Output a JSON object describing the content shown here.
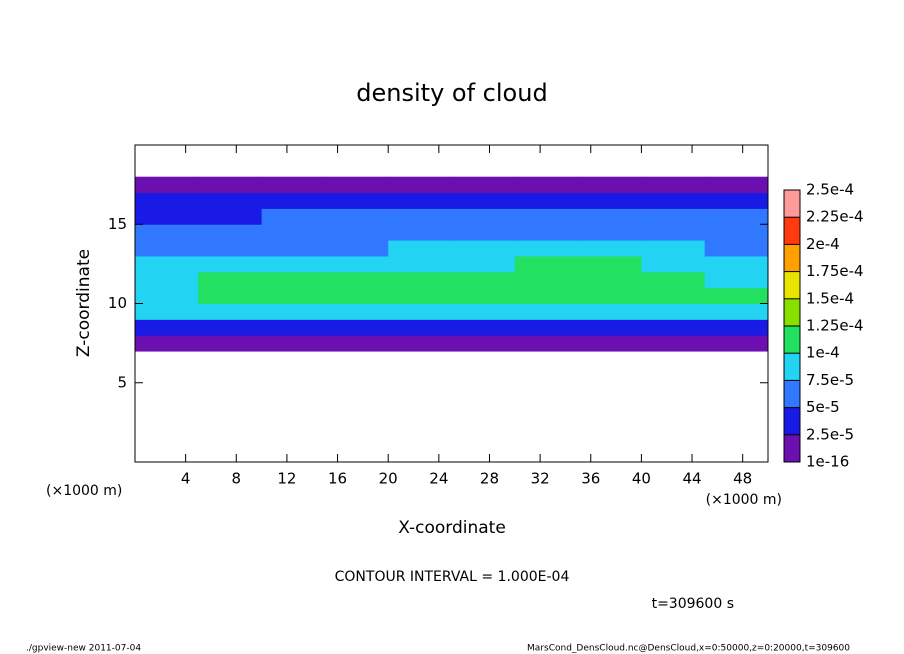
{
  "chart_data": {
    "type": "heatmap",
    "title": "density of cloud",
    "x_label": "X-coordinate",
    "y_label": "Z-coordinate",
    "x_unit": "(×1000 m)",
    "y_unit": "(×1000 m)",
    "contour_note": "CONTOUR INTERVAL = 1.000E-04",
    "time_note": "t=309600 s",
    "footer_left": "./gpview-new  2011-07-04",
    "footer_right": "MarsCond_DensCloud.nc@DensCloud,x=0:50000,z=0:20000,t=309600",
    "xlim": [
      0,
      50
    ],
    "ylim": [
      0,
      20
    ],
    "xticks": [
      4,
      8,
      12,
      16,
      20,
      24,
      28,
      32,
      36,
      40,
      44,
      48
    ],
    "yticks": [
      5,
      10,
      15
    ],
    "x_bins": [
      0,
      5,
      10,
      15,
      20,
      25,
      30,
      35,
      40,
      45,
      50
    ],
    "z_bins": [
      7,
      8,
      9,
      10,
      11,
      12,
      13,
      14,
      15,
      16,
      17,
      18
    ],
    "values": [
      [
        1e-05,
        1e-05,
        1e-05,
        1e-05,
        1e-05,
        1e-05,
        1e-05,
        1e-05,
        1e-05,
        1e-05
      ],
      [
        4e-05,
        3.5e-05,
        3.5e-05,
        3e-05,
        3.5e-05,
        3.5e-05,
        4e-05,
        4e-05,
        4e-05,
        4e-05
      ],
      [
        8e-05,
        8.5e-05,
        9e-05,
        9e-05,
        9e-05,
        9e-05,
        9e-05,
        9e-05,
        9e-05,
        8.5e-05
      ],
      [
        9.5e-05,
        0.00011,
        0.00011,
        0.000105,
        0.00011,
        0.00011,
        0.00011,
        0.00011,
        0.00011,
        0.0001
      ],
      [
        9e-05,
        0.000105,
        0.000105,
        0.000102,
        0.000105,
        0.00011,
        0.00011,
        0.00011,
        0.000105,
        9.5e-05
      ],
      [
        8e-05,
        8.5e-05,
        9e-05,
        8.5e-05,
        9e-05,
        9.5e-05,
        0.0001,
        0.0001,
        9e-05,
        8.5e-05
      ],
      [
        6e-05,
        6.5e-05,
        7e-05,
        7e-05,
        7.5e-05,
        7.5e-05,
        8e-05,
        8e-05,
        7.5e-05,
        7e-05
      ],
      [
        5.5e-05,
        6e-05,
        6e-05,
        6e-05,
        6e-05,
        6.5e-05,
        6.5e-05,
        6.5e-05,
        6e-05,
        6e-05
      ],
      [
        4e-05,
        4.5e-05,
        5e-05,
        5e-05,
        5e-05,
        5e-05,
        5.5e-05,
        5.5e-05,
        5.5e-05,
        5e-05
      ],
      [
        3e-05,
        3e-05,
        3e-05,
        3e-05,
        3e-05,
        3e-05,
        3e-05,
        3e-05,
        3.5e-05,
        3.5e-05
      ],
      [
        1e-05,
        1e-05,
        1e-05,
        1e-05,
        1e-05,
        1e-05,
        1e-05,
        1e-05,
        1e-05,
        1e-05
      ]
    ],
    "levels": [
      {
        "value": 1e-16,
        "label": "1e-16"
      },
      {
        "value": 2.5e-05,
        "label": "2.5e-5"
      },
      {
        "value": 5e-05,
        "label": "5e-5"
      },
      {
        "value": 7.5e-05,
        "label": "7.5e-5"
      },
      {
        "value": 0.0001,
        "label": "1e-4"
      },
      {
        "value": 0.000125,
        "label": "1.25e-4"
      },
      {
        "value": 0.00015,
        "label": "1.5e-4"
      },
      {
        "value": 0.000175,
        "label": "1.75e-4"
      },
      {
        "value": 0.0002,
        "label": "2e-4"
      },
      {
        "value": 0.000225,
        "label": "2.25e-4"
      },
      {
        "value": 0.00025,
        "label": "2.5e-4"
      }
    ],
    "colors": [
      "#6c0fb0",
      "#1a1ae6",
      "#2f78ff",
      "#22d4f2",
      "#22e060",
      "#88e000",
      "#e8e400",
      "#ffa000",
      "#ff3a10",
      "#ff9a9a"
    ]
  }
}
